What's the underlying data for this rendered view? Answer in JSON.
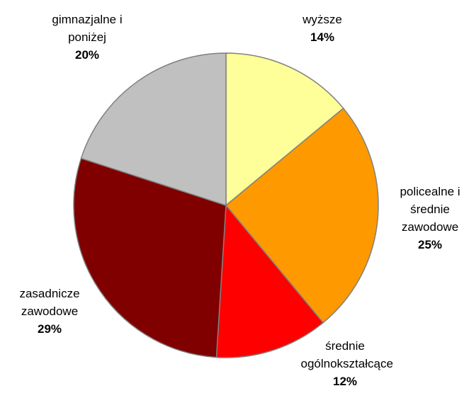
{
  "chart_data": {
    "type": "pie",
    "categories": [
      "wyższe",
      "policealne i średnie zawodowe",
      "średnie ogólnokształcące",
      "zasadnicze zawodowe",
      "gimnazjalne i poniżej"
    ],
    "values": [
      14,
      25,
      12,
      29,
      20
    ],
    "value_labels": [
      "14%",
      "25%",
      "12%",
      "29%",
      "20%"
    ],
    "colors": [
      "#ffff99",
      "#ff9900",
      "#ff0000",
      "#800000",
      "#c0c0c0"
    ]
  }
}
